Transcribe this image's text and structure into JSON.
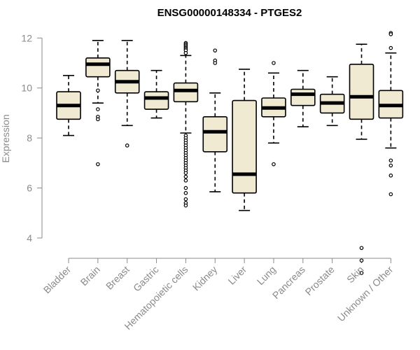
{
  "chart_data": {
    "type": "boxplot",
    "title": "ENSG00000148334 - PTGES2",
    "xlabel": "",
    "ylabel": "Expression",
    "ylim": [
      3.3,
      12.4
    ],
    "yticks": [
      4,
      6,
      8,
      10,
      12
    ],
    "box_fill": "#f0ead2",
    "box_stroke": "#000000",
    "categories": [
      "Bladder",
      "Brain",
      "Breast",
      "Gastric",
      "Hematopoietic cells",
      "Kidney",
      "Liver",
      "Lung",
      "Pancreas",
      "Prostate",
      "Skin",
      "Unknown / Other"
    ],
    "boxes": [
      {
        "category": "Bladder",
        "whisker_low": 8.1,
        "q1": 8.75,
        "median": 9.3,
        "q3": 9.85,
        "whisker_high": 10.5,
        "outliers": []
      },
      {
        "category": "Brain",
        "whisker_low": 9.4,
        "q1": 10.45,
        "median": 10.95,
        "q3": 11.2,
        "whisker_high": 11.9,
        "outliers": [
          9.9,
          9.15,
          8.85,
          8.75,
          6.95
        ]
      },
      {
        "category": "Breast",
        "whisker_low": 8.5,
        "q1": 9.8,
        "median": 10.25,
        "q3": 10.7,
        "whisker_high": 11.9,
        "outliers": [
          7.7
        ]
      },
      {
        "category": "Gastric",
        "whisker_low": 8.8,
        "q1": 9.15,
        "median": 9.6,
        "q3": 9.85,
        "whisker_high": 10.7,
        "outliers": []
      },
      {
        "category": "Hematopoietic cells",
        "whisker_low": 8.2,
        "q1": 9.45,
        "median": 9.9,
        "q3": 10.2,
        "whisker_high": 11.3,
        "outliers": [
          11.8,
          11.75,
          11.7,
          11.65,
          11.6,
          11.55,
          11.5,
          11.4,
          8.1,
          8.0,
          7.9,
          7.8,
          7.7,
          7.6,
          7.5,
          7.4,
          7.3,
          7.2,
          7.1,
          7.0,
          6.9,
          6.8,
          6.7,
          6.6,
          6.45,
          6.3,
          6.0,
          5.8,
          5.55,
          5.4,
          5.3
        ]
      },
      {
        "category": "Kidney",
        "whisker_low": 5.85,
        "q1": 7.45,
        "median": 8.25,
        "q3": 8.85,
        "whisker_high": 9.8,
        "outliers": [
          11.5,
          11.1,
          11.0
        ]
      },
      {
        "category": "Liver",
        "whisker_low": 5.1,
        "q1": 5.8,
        "median": 6.55,
        "q3": 9.5,
        "whisker_high": 10.75,
        "outliers": []
      },
      {
        "category": "Lung",
        "whisker_low": 7.8,
        "q1": 8.85,
        "median": 9.2,
        "q3": 9.6,
        "whisker_high": 10.6,
        "outliers": [
          11.0,
          6.95
        ]
      },
      {
        "category": "Pancreas",
        "whisker_low": 8.45,
        "q1": 9.3,
        "median": 9.75,
        "q3": 9.95,
        "whisker_high": 10.7,
        "outliers": []
      },
      {
        "category": "Prostate",
        "whisker_low": 8.5,
        "q1": 9.0,
        "median": 9.4,
        "q3": 9.75,
        "whisker_high": 10.45,
        "outliers": []
      },
      {
        "category": "Skin",
        "whisker_low": 7.95,
        "q1": 8.75,
        "median": 9.65,
        "q3": 10.95,
        "whisker_high": 11.75,
        "outliers": [
          3.6,
          3.1,
          2.6
        ]
      },
      {
        "category": "Unknown / Other",
        "whisker_low": 7.6,
        "q1": 8.8,
        "median": 9.3,
        "q3": 9.9,
        "whisker_high": 11.4,
        "outliers": [
          12.2,
          12.15,
          11.6,
          7.1,
          6.9,
          6.5,
          5.75
        ]
      }
    ]
  }
}
